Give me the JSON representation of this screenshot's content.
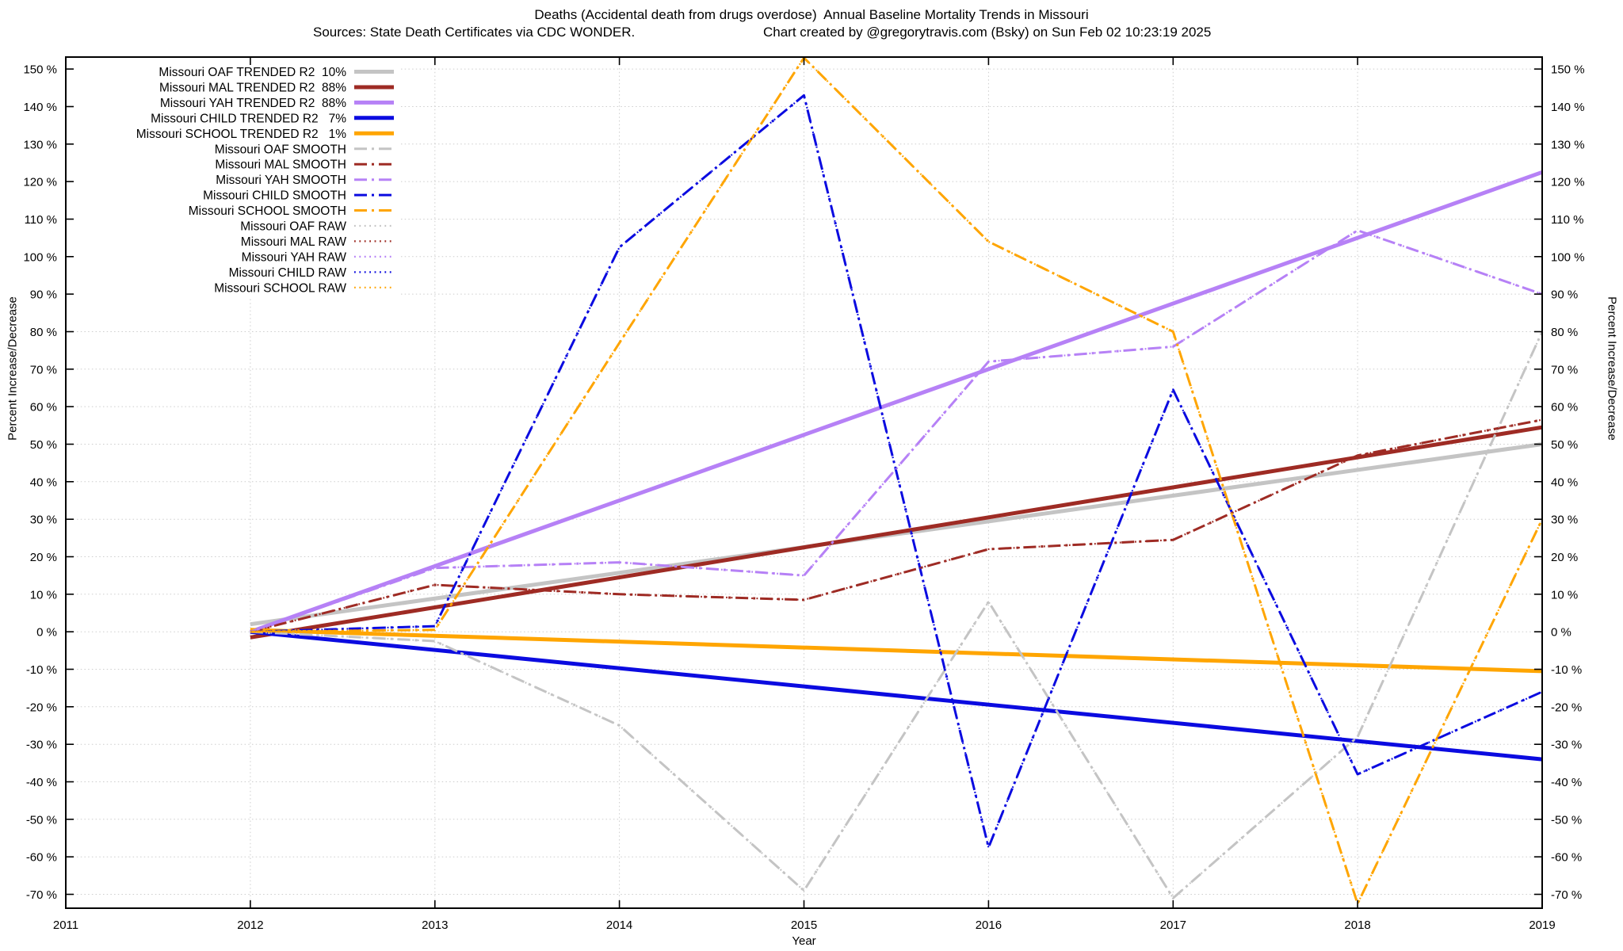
{
  "title": "Deaths (Accidental death from drugs overdose)  Annual Baseline Mortality Trends in Missouri",
  "subtitle_sources": "Sources: State Death Certificates via CDC WONDER.",
  "subtitle_credit": "Chart created by @gregorytravis.com (Bsky) on Sun Feb 02 10:23:19 2025",
  "colors": {
    "oaf": "#c4c4c4",
    "mal": "#9e2b24",
    "yah": "#b681f6",
    "child": "#0b0be0",
    "school": "#ffa500",
    "grid": "#cdcdcd",
    "axis": "#000000"
  },
  "chart_data": {
    "type": "line",
    "xlabel": "Year",
    "ylabel_left": "Percent Increase/Decrease",
    "ylabel_right": "Percent Increase/Decrease",
    "xlim": [
      2011,
      2019
    ],
    "ylim": [
      -73.7,
      153.2
    ],
    "grid": true,
    "legend_position": "top-left",
    "x_ticks": [
      2011,
      2012,
      2013,
      2014,
      2015,
      2016,
      2017,
      2018,
      2019
    ],
    "y_ticks": [
      150,
      140,
      130,
      120,
      110,
      100,
      90,
      80,
      70,
      60,
      50,
      40,
      30,
      20,
      10,
      0,
      -10,
      -20,
      -30,
      -40,
      -50,
      -60,
      -70
    ],
    "y_tick_suffix": " %",
    "series": [
      {
        "name": "Missouri OAF TRENDED R2  10%",
        "role": "trended",
        "style": "solid",
        "width": 5,
        "color": "#c4c4c4",
        "x": [
          2012,
          2019
        ],
        "y": [
          2,
          50
        ]
      },
      {
        "name": "Missouri MAL TRENDED R2  88%",
        "role": "trended",
        "style": "solid",
        "width": 5,
        "color": "#9e2b24",
        "x": [
          2012,
          2019
        ],
        "y": [
          -1.5,
          54.5
        ]
      },
      {
        "name": "Missouri YAH TRENDED R2  88%",
        "role": "trended",
        "style": "solid",
        "width": 5,
        "color": "#b681f6",
        "x": [
          2012,
          2019
        ],
        "y": [
          0,
          122.5
        ]
      },
      {
        "name": "Missouri CHILD TRENDED R2   7%",
        "role": "trended",
        "style": "solid",
        "width": 5,
        "color": "#0b0be0",
        "x": [
          2012,
          2019
        ],
        "y": [
          0,
          -34
        ]
      },
      {
        "name": "Missouri SCHOOL TRENDED R2   1%",
        "role": "trended",
        "style": "solid",
        "width": 5,
        "color": "#ffa500",
        "x": [
          2012,
          2019
        ],
        "y": [
          0.5,
          -10.5
        ]
      },
      {
        "name": "Missouri OAF SMOOTH",
        "role": "smooth",
        "style": "dashdot",
        "width": 3,
        "color": "#c4c4c4",
        "x": [
          2012,
          2013,
          2014,
          2015,
          2016,
          2017,
          2018,
          2019
        ],
        "y": [
          0,
          -2.5,
          -25,
          -69,
          8,
          -71,
          -28,
          80
        ]
      },
      {
        "name": "Missouri MAL SMOOTH",
        "role": "smooth",
        "style": "dashdot",
        "width": 3,
        "color": "#9e2b24",
        "x": [
          2012,
          2013,
          2014,
          2015,
          2016,
          2017,
          2018,
          2019
        ],
        "y": [
          0,
          12.5,
          10,
          8.5,
          22,
          24.5,
          47,
          56.5
        ]
      },
      {
        "name": "Missouri YAH SMOOTH",
        "role": "smooth",
        "style": "dashdot",
        "width": 3,
        "color": "#b681f6",
        "x": [
          2012,
          2013,
          2014,
          2015,
          2016,
          2017,
          2018,
          2019
        ],
        "y": [
          0,
          17,
          18.5,
          15,
          72,
          76,
          107,
          90
        ]
      },
      {
        "name": "Missouri CHILD SMOOTH",
        "role": "smooth",
        "style": "dashdot",
        "width": 3,
        "color": "#0b0be0",
        "x": [
          2012,
          2013,
          2014,
          2015,
          2016,
          2017,
          2018,
          2019
        ],
        "y": [
          0,
          1.5,
          102.5,
          143,
          -57.5,
          64.5,
          -38,
          -16
        ]
      },
      {
        "name": "Missouri SCHOOL SMOOTH",
        "role": "smooth",
        "style": "dashdot",
        "width": 3,
        "color": "#ffa500",
        "x": [
          2012,
          2013,
          2014,
          2015,
          2016,
          2017,
          2018,
          2019
        ],
        "y": [
          0,
          0.5,
          77,
          153,
          104,
          80,
          -72.5,
          30
        ]
      },
      {
        "name": "Missouri OAF RAW",
        "role": "raw",
        "style": "dotted",
        "width": 2.2,
        "color": "#c4c4c4",
        "x": [
          2012,
          2013,
          2014,
          2015,
          2016,
          2017,
          2018,
          2019
        ],
        "y": [
          0,
          -2.5,
          -25,
          -69,
          8,
          -71,
          -28,
          80
        ]
      },
      {
        "name": "Missouri MAL RAW",
        "role": "raw",
        "style": "dotted",
        "width": 2.2,
        "color": "#9e2b24",
        "x": [
          2012,
          2013,
          2014,
          2015,
          2016,
          2017,
          2018,
          2019
        ],
        "y": [
          0,
          12.5,
          10,
          8.5,
          22,
          24.5,
          47,
          56.5
        ]
      },
      {
        "name": "Missouri YAH RAW",
        "role": "raw",
        "style": "dotted",
        "width": 2.2,
        "color": "#b681f6",
        "x": [
          2012,
          2013,
          2014,
          2015,
          2016,
          2017,
          2018,
          2019
        ],
        "y": [
          0,
          17,
          18.5,
          15,
          72,
          76,
          107,
          90
        ]
      },
      {
        "name": "Missouri CHILD RAW",
        "role": "raw",
        "style": "dotted",
        "width": 2.2,
        "color": "#0b0be0",
        "x": [
          2012,
          2013,
          2014,
          2015,
          2016,
          2017,
          2018,
          2019
        ],
        "y": [
          0,
          1.5,
          102.5,
          143,
          -57.5,
          64.5,
          -38,
          -16
        ]
      },
      {
        "name": "Missouri SCHOOL RAW",
        "role": "raw",
        "style": "dotted",
        "width": 2.2,
        "color": "#ffa500",
        "x": [
          2012,
          2013,
          2014,
          2015,
          2016,
          2017,
          2018,
          2019
        ],
        "y": [
          0,
          0.5,
          77,
          153,
          104,
          80,
          -72.5,
          30
        ]
      }
    ]
  }
}
